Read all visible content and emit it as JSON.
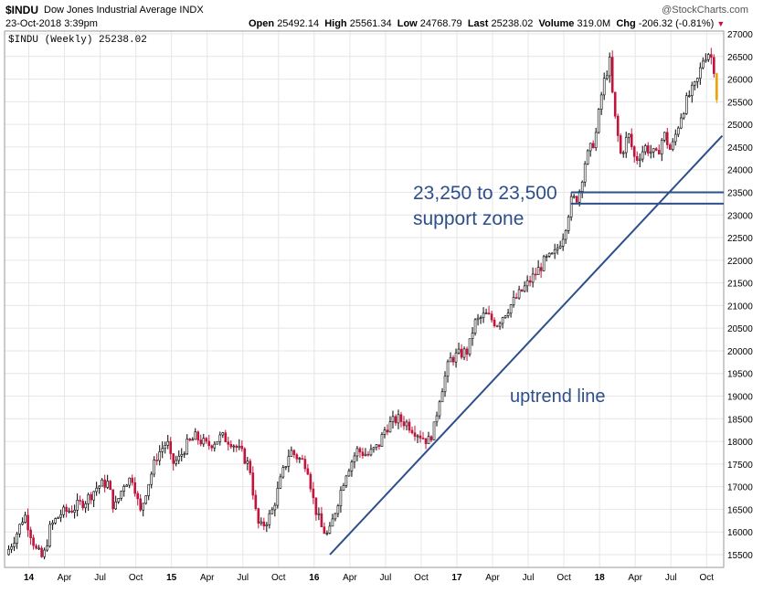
{
  "header": {
    "symbol": "$INDU",
    "name": "Dow Jones Industrial Average INDX",
    "date": "23-Oct-2018 3:39pm",
    "brand": "@StockCharts.com",
    "open_label": "Open",
    "open": "25492.14",
    "high_label": "High",
    "high": "25561.34",
    "low_label": "Low",
    "low": "24768.79",
    "last_label": "Last",
    "last": "25238.02",
    "volume_label": "Volume",
    "volume": "319.0M",
    "chg_label": "Chg",
    "chg": "-206.32 (-0.81%)"
  },
  "legend": "$INDU (Weekly) 25238.02",
  "annotations": {
    "support_line1": "23,250 to 23,500",
    "support_line2": "support zone",
    "uptrend": "uptrend line"
  },
  "colors": {
    "up": "#000000",
    "down": "#c0143c",
    "last": "#f2a000",
    "annotation": "#2d4f8a",
    "grid": "#e6e6e6"
  },
  "chart_data": {
    "type": "candlestick",
    "title": "$INDU (Weekly) 25238.02",
    "ylim": [
      15100,
      27100
    ],
    "y_ticks": [
      15500,
      16000,
      16500,
      17000,
      17500,
      18000,
      18500,
      19000,
      19500,
      20000,
      20500,
      21000,
      21500,
      22000,
      22500,
      23000,
      23500,
      24000,
      24500,
      25000,
      25500,
      26000,
      26500,
      27000
    ],
    "x_ticks": [
      {
        "label": "14",
        "t": 2014.0,
        "bold": true
      },
      {
        "label": "Apr",
        "t": 2014.25
      },
      {
        "label": "Jul",
        "t": 2014.5
      },
      {
        "label": "Oct",
        "t": 2014.75
      },
      {
        "label": "15",
        "t": 2015.0,
        "bold": true
      },
      {
        "label": "Apr",
        "t": 2015.25
      },
      {
        "label": "Jul",
        "t": 2015.5
      },
      {
        "label": "Oct",
        "t": 2015.75
      },
      {
        "label": "16",
        "t": 2016.0,
        "bold": true
      },
      {
        "label": "Apr",
        "t": 2016.25
      },
      {
        "label": "Jul",
        "t": 2016.5
      },
      {
        "label": "Oct",
        "t": 2016.75
      },
      {
        "label": "17",
        "t": 2017.0,
        "bold": true
      },
      {
        "label": "Apr",
        "t": 2017.25
      },
      {
        "label": "Jul",
        "t": 2017.5
      },
      {
        "label": "Oct",
        "t": 2017.75
      },
      {
        "label": "18",
        "t": 2018.0,
        "bold": true
      },
      {
        "label": "Apr",
        "t": 2018.25
      },
      {
        "label": "Jul",
        "t": 2018.5
      },
      {
        "label": "Oct",
        "t": 2018.75
      }
    ],
    "xlim": [
      2013.83,
      2018.87
    ],
    "close_path": [
      [
        2013.84,
        15500
      ],
      [
        2013.92,
        16000
      ],
      [
        2013.97,
        16400
      ],
      [
        2014.05,
        15600
      ],
      [
        2014.1,
        15400
      ],
      [
        2014.15,
        16100
      ],
      [
        2014.22,
        16400
      ],
      [
        2014.3,
        16500
      ],
      [
        2014.4,
        16700
      ],
      [
        2014.48,
        17000
      ],
      [
        2014.55,
        17100
      ],
      [
        2014.6,
        16500
      ],
      [
        2014.67,
        17100
      ],
      [
        2014.73,
        17200
      ],
      [
        2014.78,
        16400
      ],
      [
        2014.82,
        16900
      ],
      [
        2014.9,
        17700
      ],
      [
        2014.97,
        18000
      ],
      [
        2015.0,
        17500
      ],
      [
        2015.05,
        17600
      ],
      [
        2015.1,
        17900
      ],
      [
        2015.17,
        18100
      ],
      [
        2015.25,
        17900
      ],
      [
        2015.35,
        18100
      ],
      [
        2015.42,
        18000
      ],
      [
        2015.5,
        17700
      ],
      [
        2015.55,
        17400
      ],
      [
        2015.6,
        16200
      ],
      [
        2015.63,
        16100
      ],
      [
        2015.7,
        16400
      ],
      [
        2015.77,
        17200
      ],
      [
        2015.83,
        17800
      ],
      [
        2015.9,
        17600
      ],
      [
        2015.95,
        17500
      ],
      [
        2016.0,
        16600
      ],
      [
        2016.05,
        16100
      ],
      [
        2016.1,
        15900
      ],
      [
        2016.15,
        16500
      ],
      [
        2016.22,
        17300
      ],
      [
        2016.3,
        17800
      ],
      [
        2016.38,
        17700
      ],
      [
        2016.45,
        17900
      ],
      [
        2016.5,
        18300
      ],
      [
        2016.58,
        18500
      ],
      [
        2016.65,
        18400
      ],
      [
        2016.72,
        18200
      ],
      [
        2016.8,
        18000
      ],
      [
        2016.84,
        18300
      ],
      [
        2016.88,
        19000
      ],
      [
        2016.95,
        19800
      ],
      [
        2017.0,
        19900
      ],
      [
        2017.08,
        20000
      ],
      [
        2017.12,
        20600
      ],
      [
        2017.2,
        20800
      ],
      [
        2017.28,
        20600
      ],
      [
        2017.35,
        20900
      ],
      [
        2017.45,
        21300
      ],
      [
        2017.55,
        21700
      ],
      [
        2017.62,
        22000
      ],
      [
        2017.68,
        22100
      ],
      [
        2017.75,
        22600
      ],
      [
        2017.8,
        23300
      ],
      [
        2017.85,
        23400
      ],
      [
        2017.9,
        24200
      ],
      [
        2017.97,
        24700
      ],
      [
        2018.02,
        25800
      ],
      [
        2018.07,
        26400
      ],
      [
        2018.1,
        25300
      ],
      [
        2018.15,
        24300
      ],
      [
        2018.2,
        24800
      ],
      [
        2018.25,
        24200
      ],
      [
        2018.32,
        24500
      ],
      [
        2018.4,
        24300
      ],
      [
        2018.45,
        24800
      ],
      [
        2018.5,
        24400
      ],
      [
        2018.57,
        25200
      ],
      [
        2018.62,
        25600
      ],
      [
        2018.68,
        25900
      ],
      [
        2018.73,
        26500
      ],
      [
        2018.77,
        26600
      ],
      [
        2018.8,
        26300
      ],
      [
        2018.83,
        25300
      ]
    ],
    "support_zone": [
      23250,
      23500
    ],
    "uptrend_line": [
      [
        2016.11,
        15500
      ],
      [
        2018.86,
        24750
      ]
    ]
  }
}
